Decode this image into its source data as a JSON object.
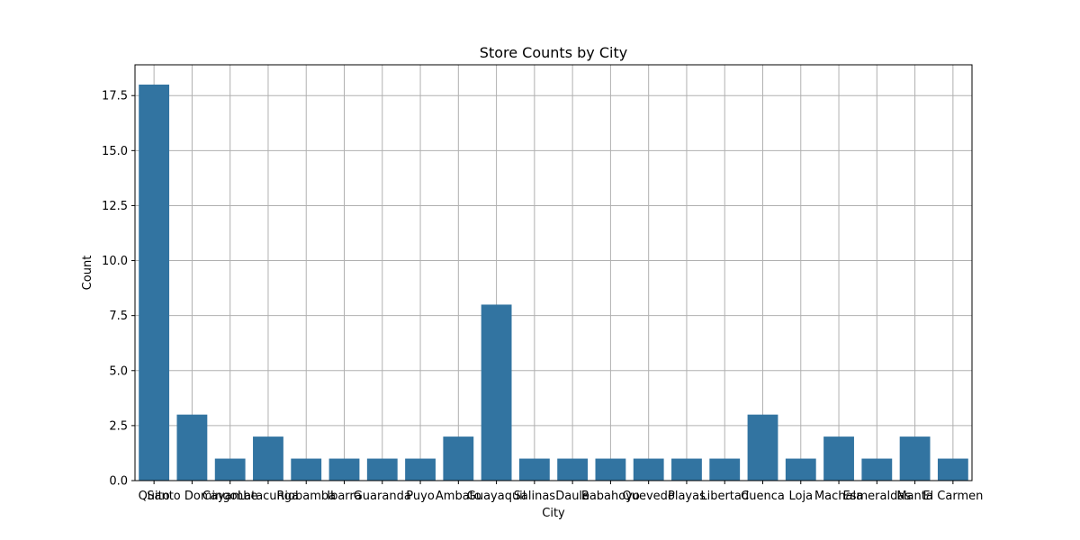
{
  "chart_data": {
    "type": "bar",
    "title": "Store Counts by City",
    "xlabel": "City",
    "ylabel": "Count",
    "categories": [
      "Quito",
      "Santo Domingo",
      "Cayambe",
      "Latacunga",
      "Riobamba",
      "Ibarra",
      "Guaranda",
      "Puyo",
      "Ambato",
      "Guayaquil",
      "Salinas",
      "Daule",
      "Babahoyo",
      "Quevedo",
      "Playas",
      "Libertad",
      "Cuenca",
      "Loja",
      "Machala",
      "Esmeraldas",
      "Manta",
      "El Carmen"
    ],
    "values": [
      18,
      3,
      1,
      2,
      1,
      1,
      1,
      1,
      2,
      8,
      1,
      1,
      1,
      1,
      1,
      1,
      3,
      1,
      2,
      1,
      2,
      1
    ],
    "ylim": [
      0,
      18.9
    ],
    "yticks": [
      0,
      2.5,
      5,
      7.5,
      10,
      12.5,
      15,
      17.5
    ],
    "ytick_labels": [
      "0.0",
      "2.5",
      "5.0",
      "7.5",
      "10.0",
      "12.5",
      "15.0",
      "17.5"
    ],
    "grid": true,
    "bar_color": "#3274a1",
    "grid_color": "#b0b0b0"
  }
}
